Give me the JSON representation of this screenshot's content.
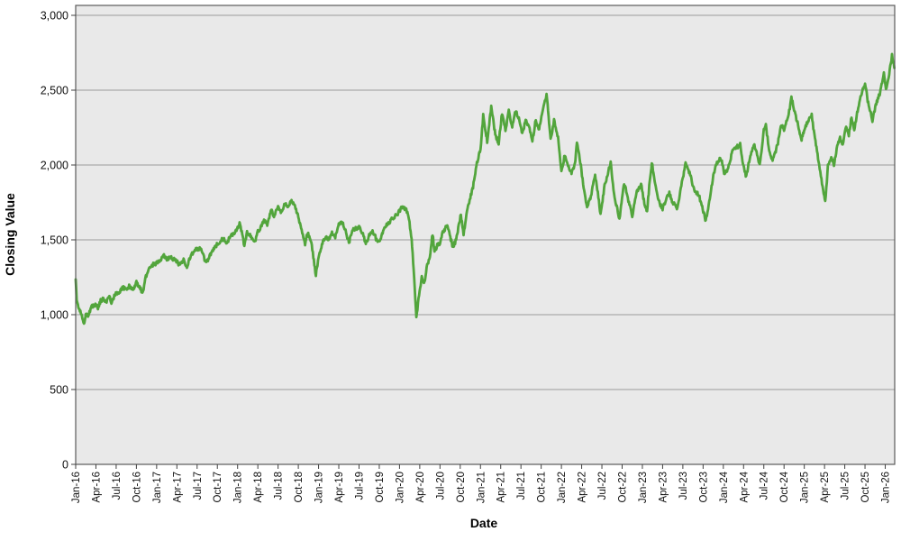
{
  "chart_data": {
    "type": "line",
    "title": "",
    "xlabel": "Date",
    "ylabel": "Closing Value",
    "legend": "none",
    "grid": "horizontal",
    "plot_bg": "#e9e9e9",
    "grid_color": "#9a9a9a",
    "border_color": "#5a5a5a",
    "tick_color": "#404040",
    "text_color": "#111111",
    "line_color": "#52a53c",
    "ylim": [
      0,
      3000
    ],
    "y_ticks": [
      0,
      500,
      1000,
      1500,
      2000,
      2500,
      3000
    ],
    "y_tick_labels": [
      "0",
      "500",
      "1,000",
      "1,500",
      "2,000",
      "2,500",
      "3,000"
    ],
    "x_tick_labels": [
      "Jan-16",
      "Apr-16",
      "Jul-16",
      "Oct-16",
      "Jan-17",
      "Apr-17",
      "Jul-17",
      "Oct-17",
      "Jan-18",
      "Apr-18",
      "Jul-18",
      "Oct-18",
      "Jan-19",
      "Apr-19",
      "Jul-19",
      "Oct-19",
      "Jan-20",
      "Apr-20",
      "Jul-20",
      "Oct-20",
      "Jan-21",
      "Apr-21",
      "Jul-21",
      "Oct-21",
      "Jan-22",
      "Apr-22",
      "Jul-22",
      "Oct-22",
      "Jan-23",
      "Apr-23",
      "Jul-23",
      "Oct-23",
      "Jan-24",
      "Apr-24",
      "Jul-24",
      "Oct-24",
      "Jan-25",
      "Apr-25",
      "Jul-25",
      "Oct-25",
      "Jan-26"
    ],
    "x_tick_interval_months": 3,
    "x_unit": "months since Jan-2016",
    "x_range_months": [
      0,
      121.4
    ],
    "daily_noise_amplitude": 13,
    "series": [
      {
        "name": "Closing Value",
        "points": [
          [
            0,
            1245
          ],
          [
            0.15,
            1090
          ],
          [
            0.4,
            1060
          ],
          [
            0.7,
            1025
          ],
          [
            1,
            965
          ],
          [
            1.3,
            945
          ],
          [
            1.6,
            1010
          ],
          [
            1.9,
            985
          ],
          [
            2.2,
            1045
          ],
          [
            2.6,
            1060
          ],
          [
            3,
            1070
          ],
          [
            3.3,
            1045
          ],
          [
            3.7,
            1095
          ],
          [
            4.1,
            1105
          ],
          [
            4.5,
            1080
          ],
          [
            5,
            1120
          ],
          [
            5.3,
            1080
          ],
          [
            5.8,
            1135
          ],
          [
            6.4,
            1150
          ],
          [
            7,
            1185
          ],
          [
            7.5,
            1165
          ],
          [
            8,
            1195
          ],
          [
            8.5,
            1160
          ],
          [
            9,
            1215
          ],
          [
            9.5,
            1185
          ],
          [
            9.9,
            1140
          ],
          [
            10.4,
            1255
          ],
          [
            11,
            1320
          ],
          [
            11.5,
            1335
          ],
          [
            12,
            1345
          ],
          [
            12.5,
            1360
          ],
          [
            13,
            1400
          ],
          [
            13.5,
            1365
          ],
          [
            14,
            1390
          ],
          [
            14.5,
            1370
          ],
          [
            15,
            1360
          ],
          [
            15.4,
            1330
          ],
          [
            16,
            1365
          ],
          [
            16.5,
            1320
          ],
          [
            17,
            1390
          ],
          [
            17.5,
            1420
          ],
          [
            18,
            1440
          ],
          [
            18.6,
            1445
          ],
          [
            19.1,
            1365
          ],
          [
            19.6,
            1355
          ],
          [
            20.1,
            1420
          ],
          [
            20.6,
            1450
          ],
          [
            21.1,
            1480
          ],
          [
            21.6,
            1500
          ],
          [
            22,
            1510
          ],
          [
            22.4,
            1480
          ],
          [
            23,
            1530
          ],
          [
            23.5,
            1545
          ],
          [
            24,
            1575
          ],
          [
            24.3,
            1615
          ],
          [
            25,
            1465
          ],
          [
            25.4,
            1550
          ],
          [
            26,
            1520
          ],
          [
            26.5,
            1480
          ],
          [
            27,
            1555
          ],
          [
            27.5,
            1590
          ],
          [
            28,
            1630
          ],
          [
            28.4,
            1600
          ],
          [
            29,
            1700
          ],
          [
            29.4,
            1660
          ],
          [
            30,
            1720
          ],
          [
            30.5,
            1680
          ],
          [
            31,
            1750
          ],
          [
            31.4,
            1710
          ],
          [
            32,
            1760
          ],
          [
            32.5,
            1720
          ],
          [
            33,
            1650
          ],
          [
            33.5,
            1560
          ],
          [
            34,
            1475
          ],
          [
            34.4,
            1550
          ],
          [
            35,
            1460
          ],
          [
            35.6,
            1265
          ],
          [
            36,
            1380
          ],
          [
            36.5,
            1470
          ],
          [
            37,
            1520
          ],
          [
            37.5,
            1500
          ],
          [
            38,
            1545
          ],
          [
            38.4,
            1510
          ],
          [
            39,
            1600
          ],
          [
            39.4,
            1630
          ],
          [
            40,
            1560
          ],
          [
            40.5,
            1480
          ],
          [
            41,
            1560
          ],
          [
            41.5,
            1575
          ],
          [
            42,
            1590
          ],
          [
            42.5,
            1545
          ],
          [
            43,
            1475
          ],
          [
            43.5,
            1530
          ],
          [
            44,
            1565
          ],
          [
            44.5,
            1510
          ],
          [
            45,
            1480
          ],
          [
            45.5,
            1545
          ],
          [
            46,
            1600
          ],
          [
            46.5,
            1620
          ],
          [
            47,
            1645
          ],
          [
            47.5,
            1665
          ],
          [
            48,
            1690
          ],
          [
            48.4,
            1725
          ],
          [
            49,
            1700
          ],
          [
            49.4,
            1640
          ],
          [
            49.8,
            1500
          ],
          [
            50.1,
            1300
          ],
          [
            50.5,
            985
          ],
          [
            50.9,
            1130
          ],
          [
            51.3,
            1255
          ],
          [
            51.7,
            1215
          ],
          [
            52.1,
            1330
          ],
          [
            52.5,
            1390
          ],
          [
            52.9,
            1540
          ],
          [
            53.2,
            1420
          ],
          [
            53.6,
            1465
          ],
          [
            54,
            1470
          ],
          [
            54.4,
            1545
          ],
          [
            55,
            1595
          ],
          [
            55.3,
            1560
          ],
          [
            55.9,
            1450
          ],
          [
            56.4,
            1500
          ],
          [
            57.1,
            1670
          ],
          [
            57.5,
            1530
          ],
          [
            58,
            1700
          ],
          [
            58.9,
            1855
          ],
          [
            59.4,
            2000
          ],
          [
            60,
            2100
          ],
          [
            60.4,
            2330
          ],
          [
            61,
            2160
          ],
          [
            61.6,
            2390
          ],
          [
            62.2,
            2200
          ],
          [
            62.7,
            2150
          ],
          [
            63.2,
            2350
          ],
          [
            63.7,
            2230
          ],
          [
            64.2,
            2360
          ],
          [
            64.7,
            2250
          ],
          [
            65.2,
            2360
          ],
          [
            65.7,
            2310
          ],
          [
            66.2,
            2210
          ],
          [
            66.7,
            2300
          ],
          [
            67.2,
            2250
          ],
          [
            67.7,
            2160
          ],
          [
            68.2,
            2300
          ],
          [
            68.7,
            2240
          ],
          [
            69.2,
            2350
          ],
          [
            69.8,
            2470
          ],
          [
            70.4,
            2170
          ],
          [
            70.9,
            2300
          ],
          [
            71.5,
            2180
          ],
          [
            72,
            1950
          ],
          [
            72.5,
            2070
          ],
          [
            73,
            1990
          ],
          [
            73.5,
            1950
          ],
          [
            74,
            2000
          ],
          [
            74.3,
            2160
          ],
          [
            74.8,
            2020
          ],
          [
            75.3,
            1850
          ],
          [
            75.8,
            1720
          ],
          [
            76.3,
            1780
          ],
          [
            77,
            1930
          ],
          [
            77.4,
            1820
          ],
          [
            77.8,
            1670
          ],
          [
            78.4,
            1860
          ],
          [
            79.3,
            2020
          ],
          [
            79.8,
            1800
          ],
          [
            80.6,
            1640
          ],
          [
            81.3,
            1880
          ],
          [
            82,
            1750
          ],
          [
            82.5,
            1660
          ],
          [
            83.1,
            1810
          ],
          [
            83.8,
            1875
          ],
          [
            84.3,
            1740
          ],
          [
            84.7,
            1690
          ],
          [
            85.1,
            1900
          ],
          [
            85.4,
            2015
          ],
          [
            85.9,
            1880
          ],
          [
            86.4,
            1760
          ],
          [
            87,
            1705
          ],
          [
            87.5,
            1770
          ],
          [
            88,
            1810
          ],
          [
            88.4,
            1760
          ],
          [
            89.2,
            1707
          ],
          [
            89.7,
            1850
          ],
          [
            90.4,
            2005
          ],
          [
            91,
            1950
          ],
          [
            91.6,
            1840
          ],
          [
            92.4,
            1795
          ],
          [
            93.1,
            1680
          ],
          [
            93.4,
            1625
          ],
          [
            94,
            1780
          ],
          [
            94.6,
            1950
          ],
          [
            95.2,
            2030
          ],
          [
            95.7,
            2040
          ],
          [
            96.2,
            1935
          ],
          [
            96.8,
            1990
          ],
          [
            97.4,
            2100
          ],
          [
            98,
            2120
          ],
          [
            98.5,
            2135
          ],
          [
            99,
            1990
          ],
          [
            99.4,
            1920
          ],
          [
            100,
            2070
          ],
          [
            100.6,
            2135
          ],
          [
            101.4,
            2000
          ],
          [
            102,
            2230
          ],
          [
            102.3,
            2270
          ],
          [
            102.8,
            2090
          ],
          [
            103.3,
            2030
          ],
          [
            104,
            2130
          ],
          [
            104.6,
            2270
          ],
          [
            105,
            2240
          ],
          [
            105.6,
            2320
          ],
          [
            106.1,
            2450
          ],
          [
            106.5,
            2370
          ],
          [
            107,
            2280
          ],
          [
            107.6,
            2170
          ],
          [
            108.2,
            2260
          ],
          [
            108.7,
            2300
          ],
          [
            109.1,
            2330
          ],
          [
            109.5,
            2200
          ],
          [
            110.2,
            2000
          ],
          [
            110.8,
            1830
          ],
          [
            111.1,
            1750
          ],
          [
            111.5,
            1990
          ],
          [
            112,
            2060
          ],
          [
            112.4,
            2000
          ],
          [
            112.8,
            2110
          ],
          [
            113.3,
            2180
          ],
          [
            113.7,
            2140
          ],
          [
            114.2,
            2260
          ],
          [
            114.6,
            2200
          ],
          [
            115,
            2320
          ],
          [
            115.4,
            2230
          ],
          [
            116,
            2390
          ],
          [
            116.5,
            2480
          ],
          [
            117,
            2545
          ],
          [
            117.4,
            2430
          ],
          [
            118.1,
            2300
          ],
          [
            118.6,
            2400
          ],
          [
            119.2,
            2480
          ],
          [
            119.8,
            2610
          ],
          [
            120.1,
            2500
          ],
          [
            120.5,
            2590
          ],
          [
            121,
            2730
          ],
          [
            121.35,
            2650
          ]
        ]
      }
    ]
  }
}
